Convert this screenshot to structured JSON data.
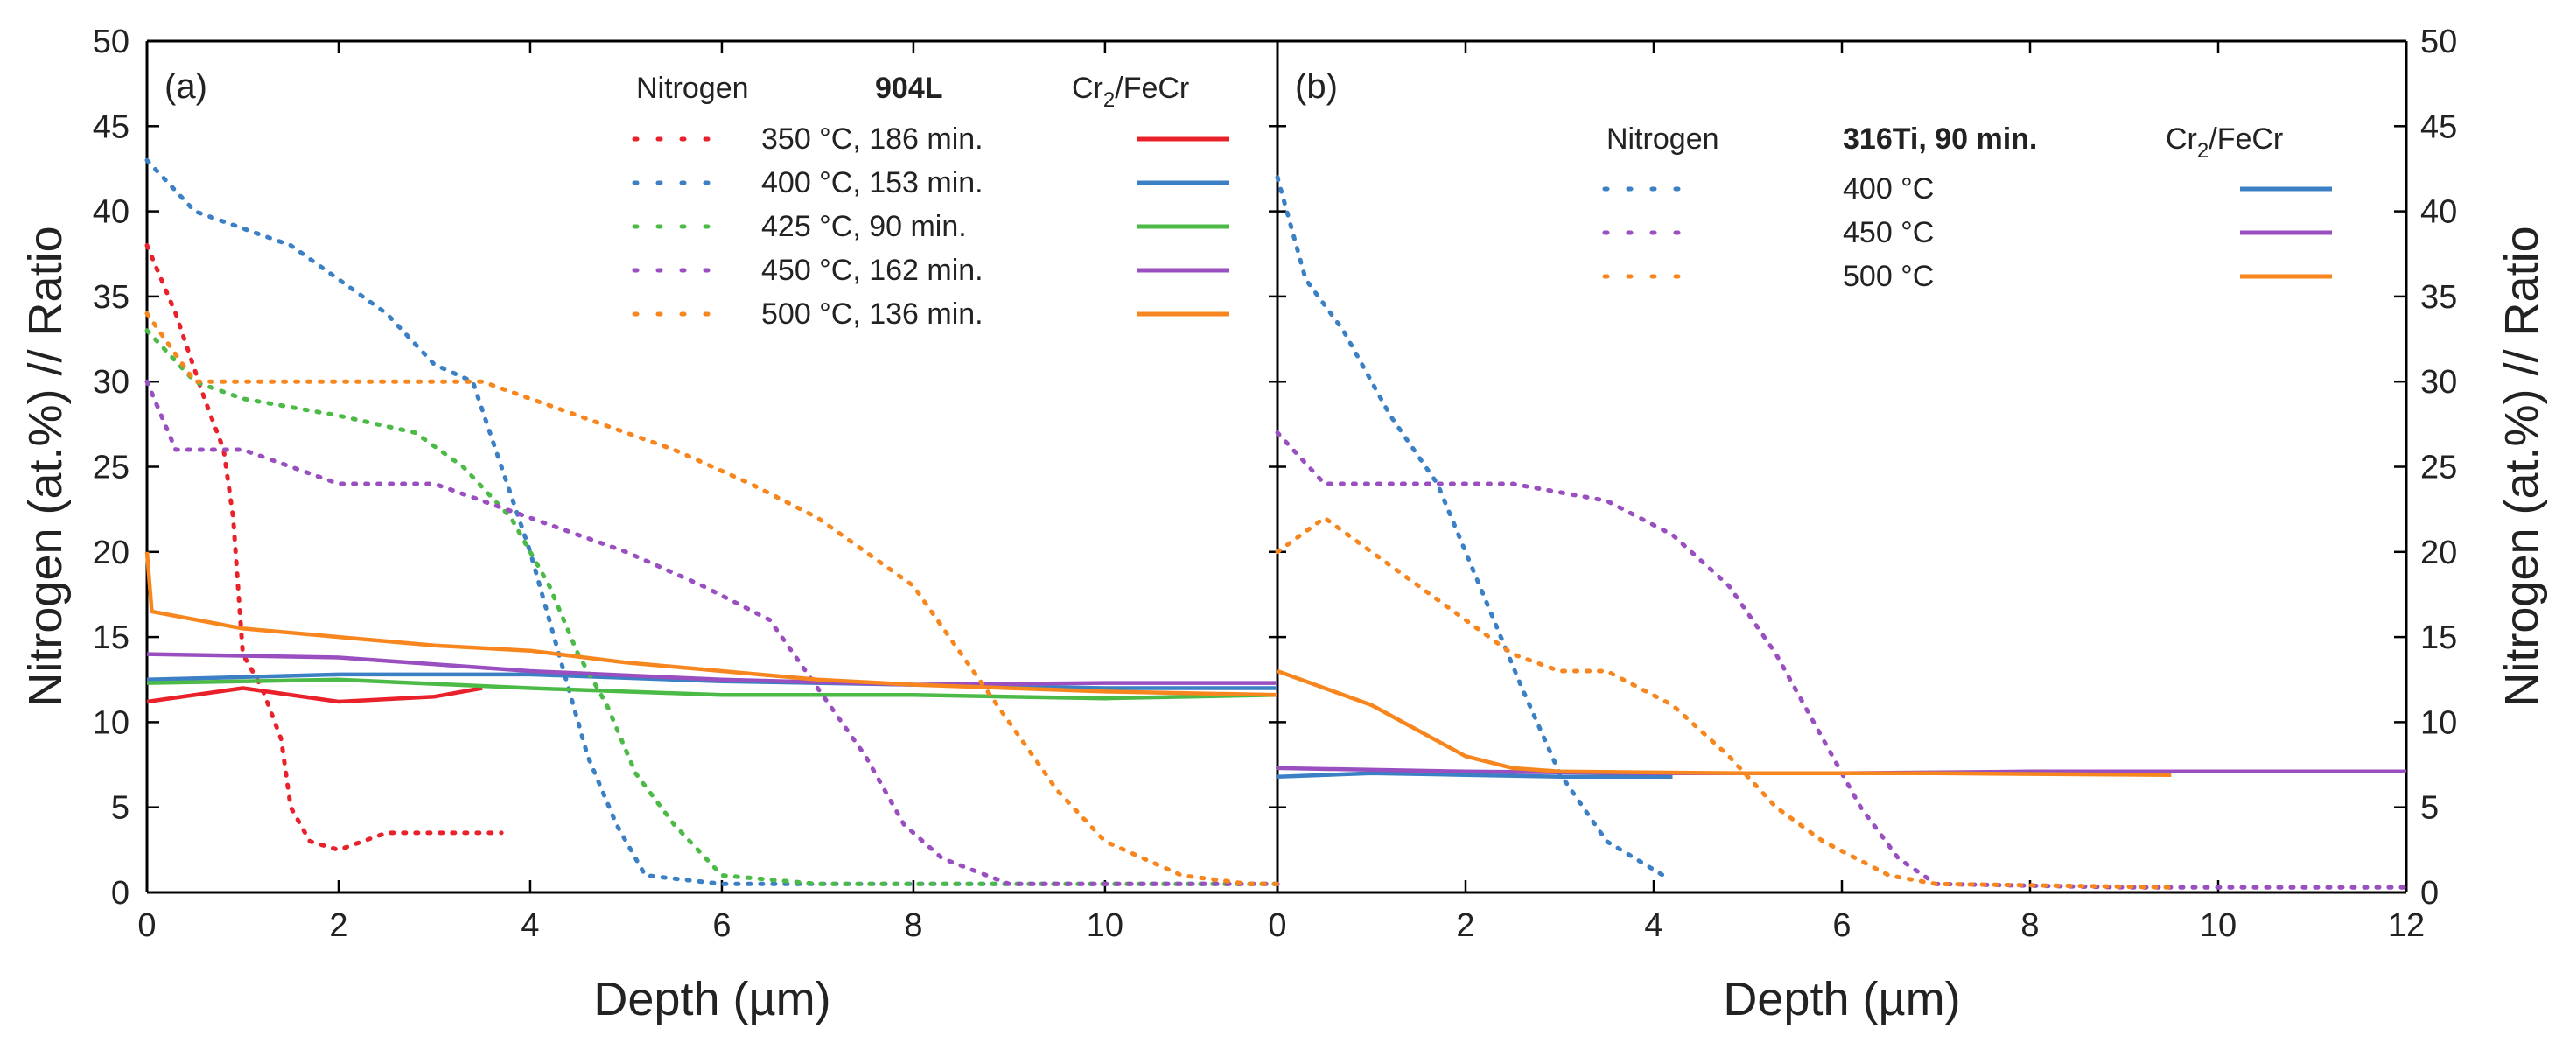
{
  "chart_data": {
    "type": "line",
    "ylabel": "Nitrogen (at.%) // Ratio",
    "ylim": [
      0,
      50
    ],
    "yticks": [
      "0",
      "5",
      "10",
      "15",
      "20",
      "25",
      "30",
      "35",
      "40",
      "45",
      "50"
    ],
    "panels": [
      {
        "label": "(a)",
        "xlabel": "Depth (µm)",
        "xlim": [
          0,
          11.8
        ],
        "xticks": [
          "0",
          "2",
          "4",
          "6",
          "8",
          "10"
        ],
        "legend": {
          "left_header": "Nitrogen",
          "mid_header": "904L",
          "right_header_main": "Cr",
          "right_header_sub": "2",
          "right_header_tail": "/FeCr"
        },
        "series": [
          {
            "name": "350 °C, 186 min.",
            "color": "#e8212a",
            "nitrogen": [
              [
                0,
                38
              ],
              [
                0.3,
                34
              ],
              [
                0.6,
                29
              ],
              [
                0.8,
                26
              ],
              [
                0.9,
                22
              ],
              [
                1.0,
                14
              ],
              [
                1.2,
                12
              ],
              [
                1.4,
                9
              ],
              [
                1.5,
                5
              ],
              [
                1.7,
                3
              ],
              [
                2.0,
                2.5
              ],
              [
                2.5,
                3.5
              ],
              [
                3.0,
                3.5
              ],
              [
                3.7,
                3.5
              ]
            ],
            "ratio": [
              [
                0,
                11.2
              ],
              [
                1.0,
                12
              ],
              [
                2.0,
                11.2
              ],
              [
                3.0,
                11.5
              ],
              [
                3.5,
                12
              ]
            ]
          },
          {
            "name": "400 °C, 153 min.",
            "color": "#3b7fc4",
            "nitrogen": [
              [
                0,
                43
              ],
              [
                0.5,
                40
              ],
              [
                1.0,
                39
              ],
              [
                1.5,
                38
              ],
              [
                2.0,
                36
              ],
              [
                2.5,
                34
              ],
              [
                3.0,
                31
              ],
              [
                3.4,
                30
              ],
              [
                3.7,
                25
              ],
              [
                4.0,
                20
              ],
              [
                4.3,
                14
              ],
              [
                4.6,
                8
              ],
              [
                4.9,
                4
              ],
              [
                5.2,
                1
              ],
              [
                6.0,
                0.5
              ],
              [
                8.0,
                0.5
              ],
              [
                10.0,
                0.5
              ],
              [
                11.8,
                0.5
              ]
            ],
            "ratio": [
              [
                0,
                12.5
              ],
              [
                2,
                12.8
              ],
              [
                4,
                12.8
              ],
              [
                6,
                12.4
              ],
              [
                8,
                12.2
              ],
              [
                10,
                12
              ],
              [
                11.8,
                12
              ]
            ]
          },
          {
            "name": "425 °C, 90 min.",
            "color": "#4cba47",
            "nitrogen": [
              [
                0,
                33
              ],
              [
                0.5,
                30
              ],
              [
                1.0,
                29
              ],
              [
                2.0,
                28
              ],
              [
                2.8,
                27
              ],
              [
                3.3,
                25
              ],
              [
                3.8,
                22
              ],
              [
                4.2,
                18
              ],
              [
                4.5,
                14
              ],
              [
                4.8,
                11
              ],
              [
                5.1,
                7
              ],
              [
                5.5,
                4
              ],
              [
                6.0,
                1
              ],
              [
                7.0,
                0.5
              ],
              [
                9.0,
                0.5
              ],
              [
                11.8,
                0.5
              ]
            ],
            "ratio": [
              [
                0,
                12.3
              ],
              [
                2,
                12.5
              ],
              [
                4,
                12
              ],
              [
                6,
                11.6
              ],
              [
                8,
                11.6
              ],
              [
                10,
                11.4
              ],
              [
                11.8,
                11.6
              ]
            ]
          },
          {
            "name": "450 °C, 162 min.",
            "color": "#9a4fc0",
            "nitrogen": [
              [
                0,
                30
              ],
              [
                0.3,
                26
              ],
              [
                1.0,
                26
              ],
              [
                2.0,
                24
              ],
              [
                3.0,
                24
              ],
              [
                4.0,
                22
              ],
              [
                5.0,
                20
              ],
              [
                5.8,
                18
              ],
              [
                6.5,
                16
              ],
              [
                7.0,
                12
              ],
              [
                7.5,
                8
              ],
              [
                7.9,
                4
              ],
              [
                8.3,
                2
              ],
              [
                9.0,
                0.5
              ],
              [
                10.0,
                0.5
              ],
              [
                11.8,
                0.5
              ]
            ],
            "ratio": [
              [
                0,
                14
              ],
              [
                2,
                13.8
              ],
              [
                4,
                13
              ],
              [
                6,
                12.5
              ],
              [
                8,
                12.2
              ],
              [
                10,
                12.3
              ],
              [
                11.8,
                12.3
              ]
            ]
          },
          {
            "name": "500 °C, 136 min.",
            "color": "#f7861e",
            "nitrogen": [
              [
                0,
                34
              ],
              [
                0.5,
                30
              ],
              [
                1.5,
                30
              ],
              [
                2.5,
                30
              ],
              [
                3.5,
                30
              ],
              [
                4.5,
                28
              ],
              [
                5.5,
                26
              ],
              [
                6.3,
                24
              ],
              [
                7.0,
                22
              ],
              [
                7.5,
                20
              ],
              [
                8.0,
                18
              ],
              [
                8.5,
                14
              ],
              [
                9.0,
                10
              ],
              [
                9.5,
                6
              ],
              [
                10.0,
                3
              ],
              [
                10.8,
                1
              ],
              [
                11.5,
                0.5
              ],
              [
                11.8,
                0.5
              ]
            ],
            "ratio": [
              [
                0,
                20
              ],
              [
                0.05,
                16.5
              ],
              [
                1,
                15.5
              ],
              [
                2,
                15
              ],
              [
                3,
                14.5
              ],
              [
                4,
                14.2
              ],
              [
                5,
                13.5
              ],
              [
                6,
                13
              ],
              [
                7,
                12.5
              ],
              [
                8,
                12.2
              ],
              [
                9,
                12
              ],
              [
                10,
                11.8
              ],
              [
                11.8,
                11.6
              ]
            ]
          }
        ]
      },
      {
        "label": "(b)",
        "xlabel": "Depth (µm)",
        "xlim": [
          0,
          12
        ],
        "xticks": [
          "0",
          "2",
          "4",
          "6",
          "8",
          "10",
          "12"
        ],
        "legend": {
          "left_header": "Nitrogen",
          "mid_header": "316Ti, 90 min.",
          "right_header_main": "Cr",
          "right_header_sub": "2",
          "right_header_tail": "/FeCr"
        },
        "series": [
          {
            "name": "400 °C",
            "color": "#3b7fc4",
            "nitrogen": [
              [
                0,
                42
              ],
              [
                0.3,
                36
              ],
              [
                0.7,
                33
              ],
              [
                1.2,
                28
              ],
              [
                1.7,
                24
              ],
              [
                2.0,
                20
              ],
              [
                2.3,
                16
              ],
              [
                2.6,
                12
              ],
              [
                3.0,
                7
              ],
              [
                3.5,
                3
              ],
              [
                4.1,
                1
              ]
            ],
            "ratio": [
              [
                0,
                6.8
              ],
              [
                1,
                7
              ],
              [
                2,
                6.9
              ],
              [
                3,
                6.8
              ],
              [
                4.2,
                6.8
              ]
            ]
          },
          {
            "name": "450 °C",
            "color": "#9a4fc0",
            "nitrogen": [
              [
                0,
                27
              ],
              [
                0.5,
                24
              ],
              [
                1.5,
                24
              ],
              [
                2.5,
                24
              ],
              [
                3.5,
                23
              ],
              [
                4.2,
                21
              ],
              [
                4.8,
                18
              ],
              [
                5.3,
                14
              ],
              [
                5.8,
                9
              ],
              [
                6.2,
                5
              ],
              [
                6.6,
                2
              ],
              [
                7.0,
                0.5
              ],
              [
                9.0,
                0.3
              ],
              [
                12.0,
                0.3
              ]
            ],
            "ratio": [
              [
                0,
                7.3
              ],
              [
                2,
                7.1
              ],
              [
                4,
                7
              ],
              [
                6,
                7
              ],
              [
                8,
                7.1
              ],
              [
                10,
                7.1
              ],
              [
                12,
                7.1
              ]
            ]
          },
          {
            "name": "500 °C",
            "color": "#f7861e",
            "nitrogen": [
              [
                0,
                20
              ],
              [
                0.5,
                22
              ],
              [
                1.0,
                20
              ],
              [
                1.5,
                18
              ],
              [
                2.0,
                16
              ],
              [
                2.5,
                14
              ],
              [
                3.0,
                13
              ],
              [
                3.5,
                13
              ],
              [
                4.2,
                11
              ],
              [
                4.8,
                8
              ],
              [
                5.3,
                5
              ],
              [
                5.8,
                3
              ],
              [
                6.5,
                1
              ],
              [
                7.0,
                0.5
              ],
              [
                9.5,
                0.3
              ]
            ],
            "ratio": [
              [
                0,
                13
              ],
              [
                0.5,
                12
              ],
              [
                1.0,
                11
              ],
              [
                1.5,
                9.5
              ],
              [
                2.0,
                8
              ],
              [
                2.5,
                7.3
              ],
              [
                3,
                7.1
              ],
              [
                5,
                7
              ],
              [
                7,
                7
              ],
              [
                9.5,
                6.9
              ]
            ]
          }
        ]
      }
    ]
  }
}
